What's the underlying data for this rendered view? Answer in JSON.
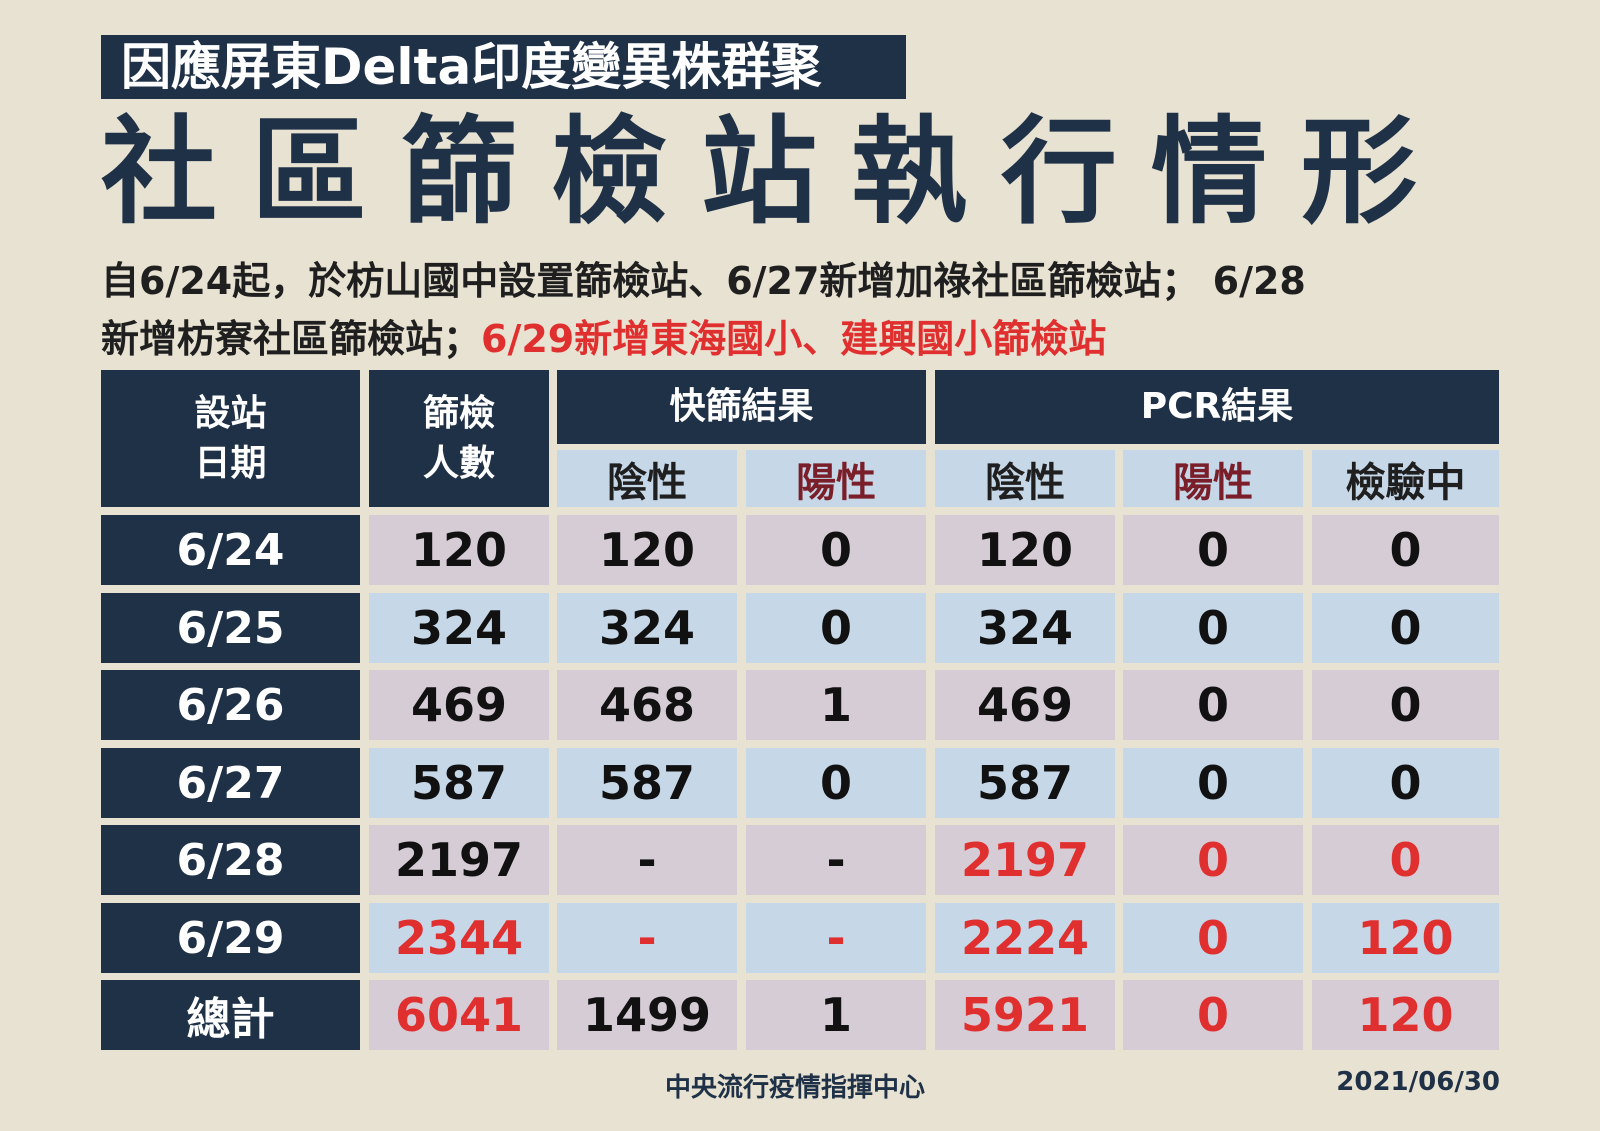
{
  "subtitle": "因應屏東Delta印度變異株群聚",
  "title": "社區篩檢站執行情形",
  "description": {
    "line1": "自6/24起，於枋山國中設置篩檢站、6/27新增加祿社區篩檢站； 6/28",
    "line2_normal": "新增枋寮社區篩檢站；",
    "line2_red": "6/29新增東海國小、建興國小篩檢站"
  },
  "table": {
    "headers": {
      "date": "設站\n日期",
      "screened": "篩檢\n人數",
      "rapid": "快篩結果",
      "pcr": "PCR結果"
    },
    "subheaders": {
      "rapid_negative": "陰性",
      "rapid_positive": "陽性",
      "pcr_negative": "陰性",
      "pcr_positive": "陽性",
      "pcr_testing": "檢驗中"
    },
    "rows": [
      {
        "date": "6/24",
        "screened": "120",
        "rapid_neg": "120",
        "rapid_pos": "0",
        "pcr_neg": "120",
        "pcr_pos": "0",
        "pcr_testing": "0"
      },
      {
        "date": "6/25",
        "screened": "324",
        "rapid_neg": "324",
        "rapid_pos": "0",
        "pcr_neg": "324",
        "pcr_pos": "0",
        "pcr_testing": "0"
      },
      {
        "date": "6/26",
        "screened": "469",
        "rapid_neg": "468",
        "rapid_pos": "1",
        "pcr_neg": "469",
        "pcr_pos": "0",
        "pcr_testing": "0"
      },
      {
        "date": "6/27",
        "screened": "587",
        "rapid_neg": "587",
        "rapid_pos": "0",
        "pcr_neg": "587",
        "pcr_pos": "0",
        "pcr_testing": "0"
      },
      {
        "date": "6/28",
        "screened": "2197",
        "rapid_neg": "-",
        "rapid_pos": "-",
        "pcr_neg": "2197",
        "pcr_pos": "0",
        "pcr_testing": "0"
      },
      {
        "date": "6/29",
        "screened": "2344",
        "rapid_neg": "-",
        "rapid_pos": "-",
        "pcr_neg": "2224",
        "pcr_pos": "0",
        "pcr_testing": "120"
      },
      {
        "date": "總計",
        "screened": "6041",
        "rapid_neg": "1499",
        "rapid_pos": "1",
        "pcr_neg": "5921",
        "pcr_pos": "0",
        "pcr_testing": "120"
      }
    ]
  },
  "footer": {
    "org": "中央流行疫情指揮中心",
    "date": "2021/06/30"
  },
  "colors": {
    "navy": "#1f3147",
    "highlight_red": "#e02f2f",
    "positive_label": "#7a1f2a",
    "pink_cell": "#d6ccd6",
    "blue_cell": "#c6d7e8",
    "background": "#e8e2d2"
  }
}
